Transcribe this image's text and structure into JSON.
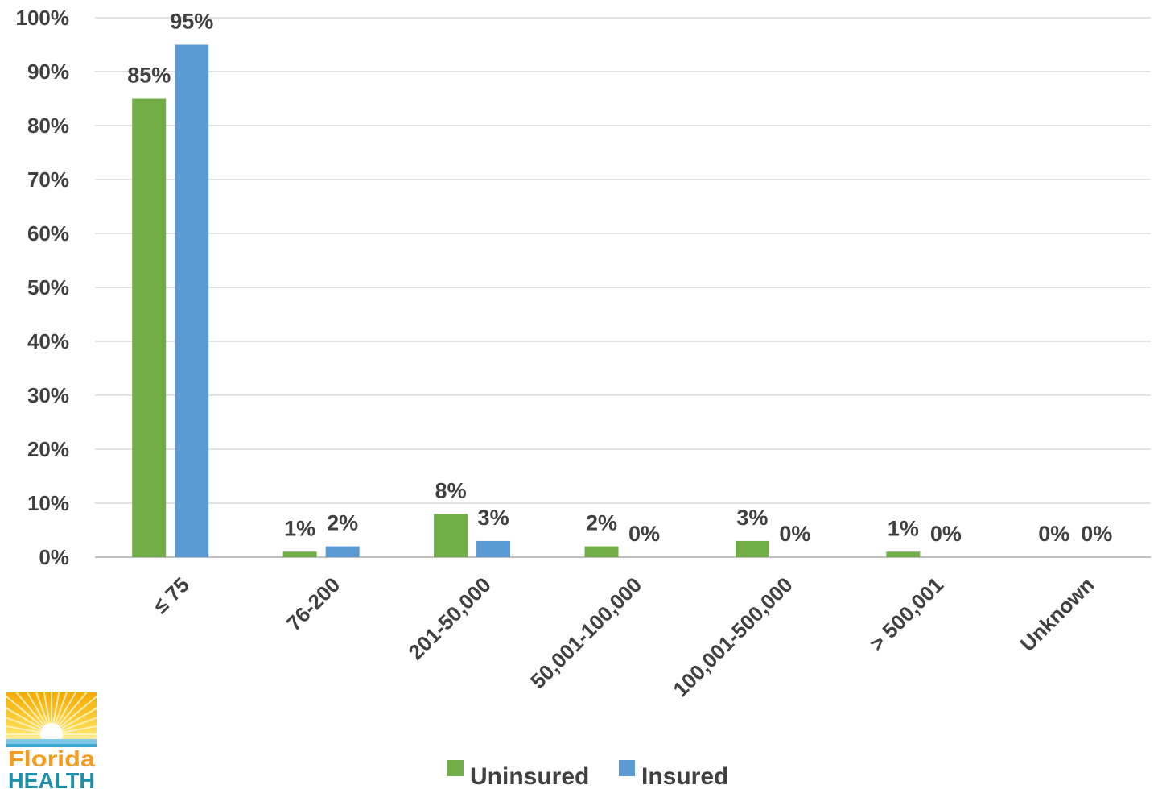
{
  "chart_data": {
    "type": "bar",
    "categories": [
      "≤ 75",
      "76-200",
      "201-50,000",
      "50,001-100,000",
      "100,001-500,000",
      "> 500,001",
      "Unknown"
    ],
    "series": [
      {
        "name": "Uninsured",
        "color": "#70AD47",
        "values": [
          85,
          1,
          8,
          2,
          3,
          1,
          0
        ]
      },
      {
        "name": "Insured",
        "color": "#5B9BD5",
        "values": [
          95,
          2,
          3,
          0,
          0,
          0,
          0
        ]
      }
    ],
    "ylim": [
      0,
      100
    ],
    "yticks": [
      "0%",
      "10%",
      "20%",
      "30%",
      "40%",
      "50%",
      "60%",
      "70%",
      "80%",
      "90%",
      "100%"
    ],
    "grid": true,
    "legend": "bottom-center"
  },
  "logo": {
    "line1": "Florida",
    "line2": "HEALTH",
    "icon": "sun-logo-icon"
  }
}
